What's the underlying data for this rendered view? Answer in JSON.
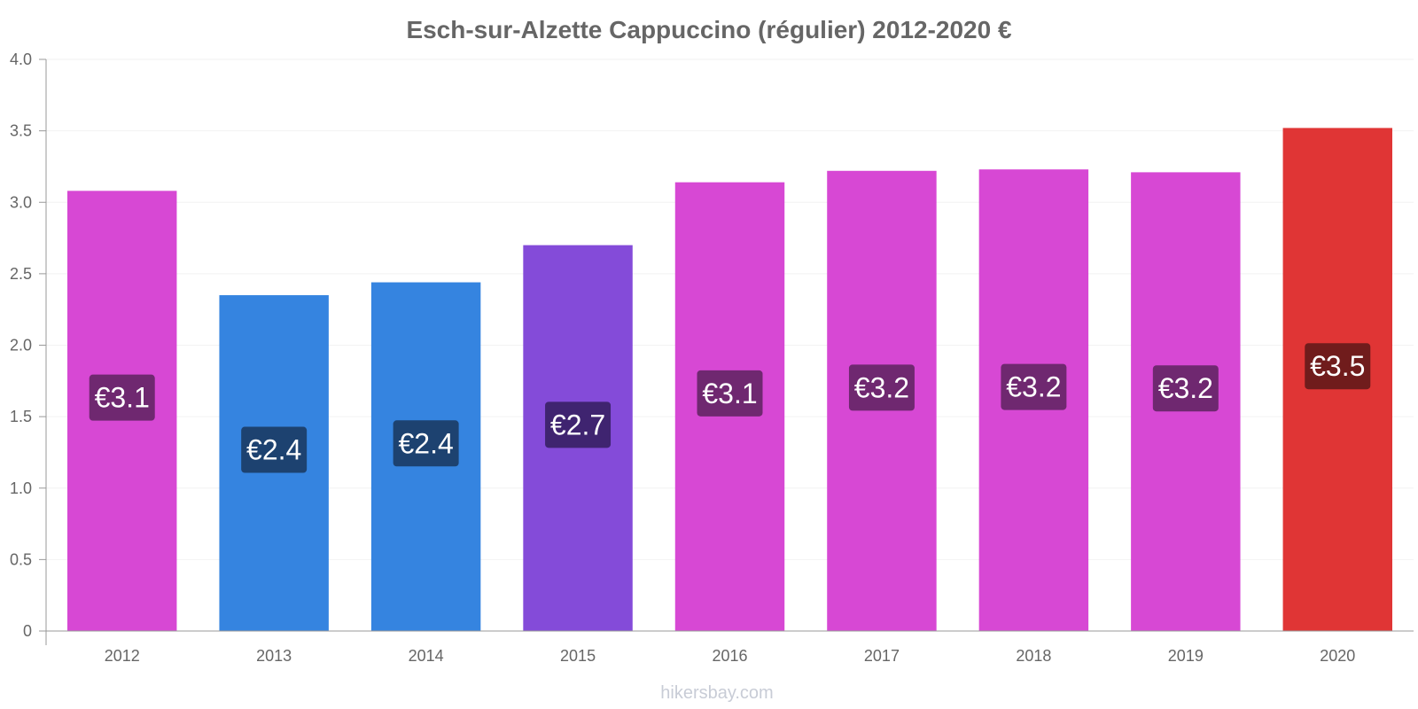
{
  "chart_data": {
    "type": "bar",
    "title": "Esch-sur-Alzette Cappuccino (régulier) 2012-2020 €",
    "xlabel": "",
    "ylabel": "",
    "ylim": [
      0,
      4.0
    ],
    "yticks": [
      "0",
      "0.5",
      "1.0",
      "1.5",
      "2.0",
      "2.5",
      "3.0",
      "3.5",
      "4.0"
    ],
    "categories": [
      "2012",
      "2013",
      "2014",
      "2015",
      "2016",
      "2017",
      "2018",
      "2019",
      "2020"
    ],
    "values": [
      3.08,
      2.35,
      2.44,
      2.7,
      3.14,
      3.22,
      3.23,
      3.21,
      3.52
    ],
    "labels": [
      "€3.1",
      "€2.4",
      "€2.4",
      "€2.7",
      "€3.1",
      "€3.2",
      "€3.2",
      "€3.2",
      "€3.5"
    ],
    "bar_colors": [
      "#d748d4",
      "#3584e0",
      "#3584e0",
      "#844bd9",
      "#d748d4",
      "#d748d4",
      "#d748d4",
      "#d748d4",
      "#e03535"
    ],
    "label_bg_colors": [
      "#6f2870",
      "#1d4270",
      "#1d4270",
      "#3f2470",
      "#6f2870",
      "#6f2870",
      "#6f2870",
      "#6f2870",
      "#701c1c"
    ],
    "grid": true,
    "legend": "none"
  },
  "source": "hikersbay.com"
}
